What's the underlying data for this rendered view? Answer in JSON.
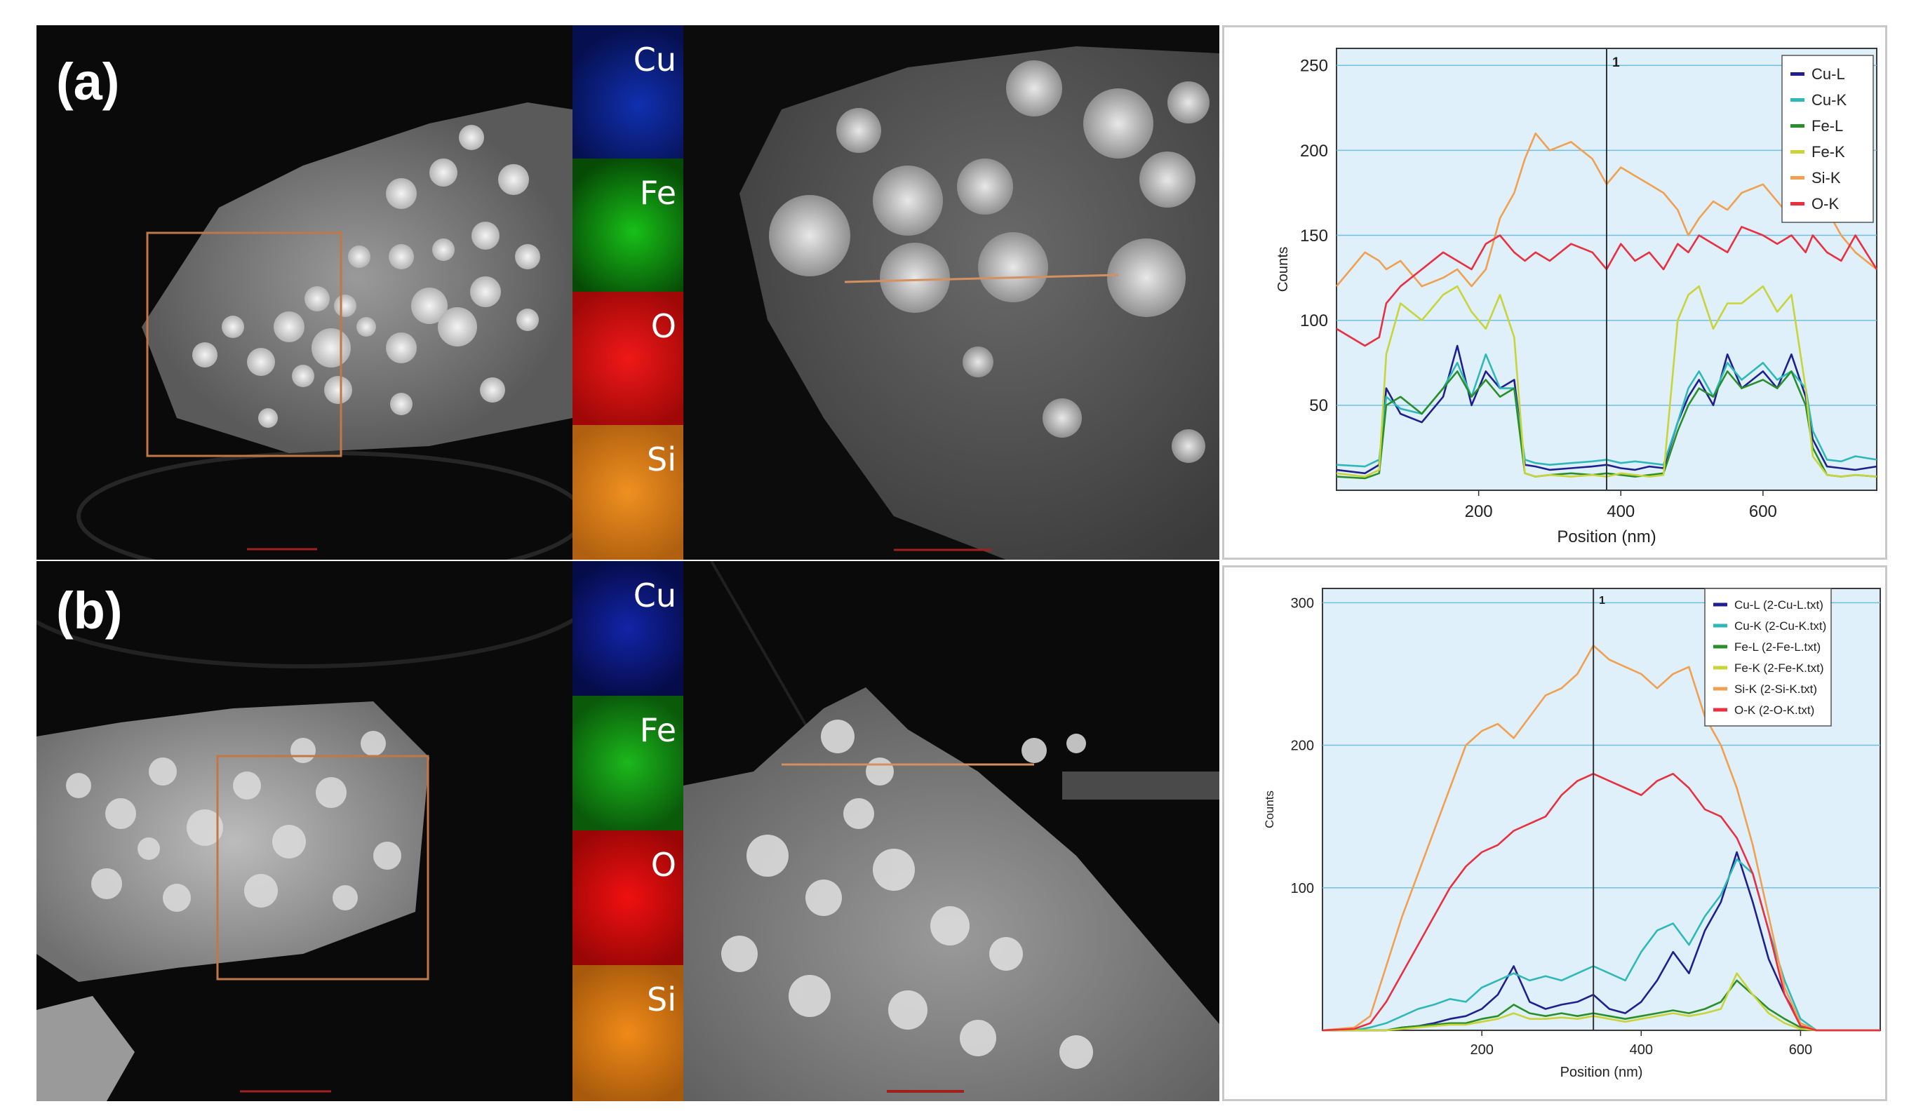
{
  "panels": [
    {
      "id": "a",
      "label": "(a)",
      "element_maps": [
        {
          "name": "Cu",
          "color": "#1428c8"
        },
        {
          "name": "Fe",
          "color": "#16a416"
        },
        {
          "name": "O",
          "color": "#e00c0c"
        },
        {
          "name": "Si",
          "color": "#e07f10"
        }
      ]
    },
    {
      "id": "b",
      "label": "(b)",
      "element_maps": [
        {
          "name": "Cu",
          "color": "#1428c8"
        },
        {
          "name": "Fe",
          "color": "#16a416"
        },
        {
          "name": "O",
          "color": "#e00c0c"
        },
        {
          "name": "Si",
          "color": "#e07f10"
        }
      ]
    }
  ],
  "chart_data": [
    {
      "type": "line",
      "panel": "a",
      "xlabel": "Position (nm)",
      "ylabel": "Counts",
      "xlim": [
        0,
        760
      ],
      "ylim": [
        0,
        260
      ],
      "xticks": [
        200,
        400,
        600
      ],
      "yticks": [
        50,
        100,
        150,
        200,
        250
      ],
      "grid": "horizontal",
      "legend_position": "top-right",
      "cursor": {
        "x": 380,
        "label": "1"
      },
      "x": [
        0,
        40,
        60,
        70,
        90,
        120,
        150,
        170,
        190,
        210,
        230,
        250,
        265,
        280,
        300,
        330,
        360,
        380,
        400,
        420,
        440,
        460,
        480,
        495,
        510,
        530,
        550,
        570,
        600,
        620,
        640,
        660,
        670,
        690,
        710,
        730,
        760
      ],
      "series": [
        {
          "name": "Cu-L",
          "color": "#1f1f8f",
          "values": [
            12,
            10,
            15,
            60,
            45,
            40,
            55,
            85,
            50,
            70,
            60,
            65,
            15,
            14,
            12,
            13,
            14,
            15,
            13,
            12,
            14,
            13,
            40,
            55,
            65,
            50,
            80,
            60,
            70,
            60,
            80,
            55,
            30,
            14,
            13,
            12,
            14
          ]
        },
        {
          "name": "Cu-K",
          "color": "#2fb8b8",
          "values": [
            15,
            14,
            18,
            55,
            48,
            45,
            60,
            75,
            55,
            80,
            60,
            60,
            18,
            16,
            15,
            16,
            17,
            18,
            16,
            17,
            16,
            15,
            40,
            60,
            70,
            55,
            75,
            65,
            75,
            65,
            70,
            60,
            35,
            18,
            17,
            20,
            18
          ]
        },
        {
          "name": "Fe-L",
          "color": "#2a8f2a",
          "values": [
            8,
            7,
            10,
            50,
            55,
            45,
            60,
            70,
            55,
            65,
            55,
            60,
            10,
            8,
            9,
            10,
            9,
            10,
            9,
            8,
            9,
            10,
            35,
            50,
            60,
            55,
            70,
            60,
            65,
            60,
            70,
            50,
            25,
            9,
            8,
            9,
            8
          ]
        },
        {
          "name": "Fe-K",
          "color": "#c8d43a",
          "values": [
            10,
            8,
            12,
            80,
            110,
            100,
            115,
            120,
            105,
            95,
            115,
            90,
            10,
            8,
            9,
            8,
            9,
            8,
            10,
            9,
            8,
            9,
            100,
            115,
            120,
            95,
            110,
            110,
            120,
            105,
            115,
            60,
            20,
            9,
            8,
            9,
            8
          ]
        },
        {
          "name": "Si-K",
          "color": "#f0a050",
          "values": [
            120,
            140,
            135,
            130,
            135,
            120,
            125,
            130,
            120,
            130,
            160,
            175,
            195,
            210,
            200,
            205,
            195,
            180,
            190,
            185,
            180,
            175,
            165,
            150,
            160,
            170,
            165,
            175,
            180,
            170,
            160,
            170,
            175,
            165,
            150,
            140,
            130
          ]
        },
        {
          "name": "O-K",
          "color": "#e83040",
          "values": [
            95,
            85,
            90,
            110,
            120,
            130,
            140,
            135,
            130,
            145,
            150,
            140,
            135,
            140,
            135,
            145,
            140,
            130,
            145,
            135,
            140,
            130,
            145,
            140,
            150,
            145,
            140,
            155,
            150,
            145,
            150,
            140,
            150,
            140,
            135,
            150,
            130
          ]
        }
      ]
    },
    {
      "type": "line",
      "panel": "b",
      "xlabel": "Position (nm)",
      "ylabel": "Counts",
      "xlim": [
        0,
        700
      ],
      "ylim": [
        0,
        310
      ],
      "xticks": [
        200,
        400,
        600
      ],
      "yticks": [
        100,
        200,
        300
      ],
      "grid": "horizontal",
      "legend_position": "top-right",
      "cursor": {
        "x": 340,
        "label": "1"
      },
      "x": [
        0,
        40,
        60,
        80,
        100,
        120,
        140,
        160,
        180,
        200,
        220,
        240,
        260,
        280,
        300,
        320,
        340,
        360,
        380,
        400,
        420,
        440,
        460,
        480,
        500,
        520,
        540,
        560,
        580,
        600,
        620,
        650,
        700
      ],
      "series": [
        {
          "name": "Cu-L (2-Cu-L.txt)",
          "color": "#1f1f8f",
          "values": [
            0,
            0,
            0,
            0,
            2,
            3,
            5,
            8,
            10,
            15,
            25,
            45,
            20,
            15,
            18,
            20,
            25,
            15,
            12,
            20,
            35,
            55,
            40,
            70,
            90,
            125,
            90,
            50,
            25,
            5,
            0,
            0,
            0
          ]
        },
        {
          "name": "Cu-K (2-Cu-K.txt)",
          "color": "#2fb8b8",
          "values": [
            0,
            0,
            2,
            5,
            10,
            15,
            18,
            22,
            20,
            30,
            35,
            40,
            35,
            38,
            35,
            40,
            45,
            40,
            35,
            55,
            70,
            75,
            60,
            80,
            95,
            120,
            110,
            70,
            35,
            8,
            0,
            0,
            0
          ]
        },
        {
          "name": "Fe-L (2-Fe-L.txt)",
          "color": "#2a8f2a",
          "values": [
            0,
            0,
            0,
            0,
            2,
            3,
            4,
            5,
            5,
            8,
            10,
            18,
            12,
            10,
            12,
            10,
            12,
            10,
            8,
            10,
            12,
            14,
            12,
            15,
            20,
            35,
            25,
            15,
            8,
            2,
            0,
            0,
            0
          ]
        },
        {
          "name": "Fe-K (2-Fe-K.txt)",
          "color": "#c8d43a",
          "values": [
            0,
            0,
            0,
            0,
            1,
            2,
            3,
            4,
            4,
            6,
            8,
            12,
            8,
            8,
            9,
            8,
            10,
            8,
            6,
            8,
            10,
            12,
            10,
            12,
            15,
            40,
            25,
            12,
            5,
            1,
            0,
            0,
            0
          ]
        },
        {
          "name": "Si-K (2-Si-K.txt)",
          "color": "#f0a050",
          "values": [
            0,
            2,
            10,
            45,
            80,
            110,
            140,
            170,
            200,
            210,
            215,
            205,
            220,
            235,
            240,
            250,
            270,
            260,
            255,
            250,
            240,
            250,
            255,
            220,
            200,
            170,
            130,
            80,
            30,
            5,
            0,
            0,
            0
          ]
        },
        {
          "name": "O-K (2-O-K.txt)",
          "color": "#e83040",
          "values": [
            0,
            1,
            5,
            20,
            40,
            60,
            80,
            100,
            115,
            125,
            130,
            140,
            145,
            150,
            165,
            175,
            180,
            175,
            170,
            165,
            175,
            180,
            170,
            155,
            150,
            135,
            110,
            70,
            25,
            3,
            0,
            0,
            0
          ]
        }
      ]
    }
  ]
}
